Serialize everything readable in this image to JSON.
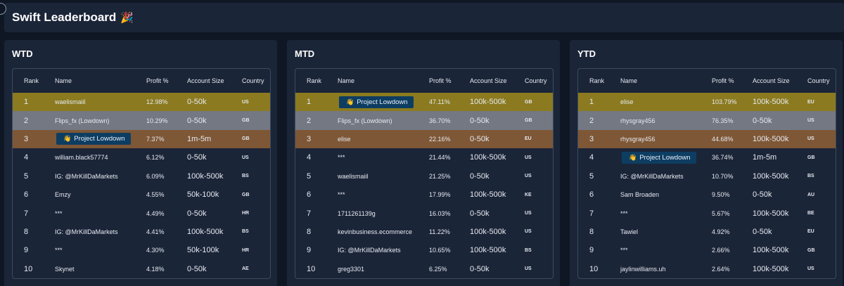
{
  "header": {
    "title": "Swift Leaderboard",
    "icon": "party-popper-icon"
  },
  "columns": {
    "rank": "Rank",
    "name": "Name",
    "profit": "Profit %",
    "size": "Account Size",
    "country": "Country"
  },
  "colors": {
    "gold": "#8b7a1f",
    "silver": "#737883",
    "bronze": "#7e5736",
    "pill": "#0e3d62",
    "panel": "#1b2538",
    "background": "#0f1724"
  },
  "panels": [
    {
      "title": "WTD",
      "rows": [
        {
          "rank": "1",
          "name": "waelismaiil",
          "profit": "12.98%",
          "size": "0-50k",
          "country": "US"
        },
        {
          "rank": "2",
          "name": "Flips_fx (Lowdown)",
          "profit": "10.29%",
          "size": "0-50k",
          "country": "GB"
        },
        {
          "rank": "3",
          "name": "Project Lowdown",
          "profit": "7.37%",
          "size": "1m-5m",
          "country": "GB",
          "pill": true
        },
        {
          "rank": "4",
          "name": "william.black57774",
          "profit": "6.12%",
          "size": "0-50k",
          "country": "US"
        },
        {
          "rank": "5",
          "name": "IG: @MrKillDaMarkets",
          "profit": "6.09%",
          "size": "100k-500k",
          "country": "BS"
        },
        {
          "rank": "6",
          "name": "Emzy",
          "profit": "4.55%",
          "size": "50k-100k",
          "country": "GB"
        },
        {
          "rank": "7",
          "name": "***",
          "profit": "4.49%",
          "size": "0-50k",
          "country": "HR"
        },
        {
          "rank": "8",
          "name": "IG: @MrKillDaMarkets",
          "profit": "4.41%",
          "size": "100k-500k",
          "country": "BS"
        },
        {
          "rank": "9",
          "name": "***",
          "profit": "4.30%",
          "size": "50k-100k",
          "country": "HR"
        },
        {
          "rank": "10",
          "name": "Skynet",
          "profit": "4.18%",
          "size": "0-50k",
          "country": "AE"
        }
      ]
    },
    {
      "title": "MTD",
      "rows": [
        {
          "rank": "1",
          "name": "Project Lowdown",
          "profit": "47.11%",
          "size": "100k-500k",
          "country": "GB",
          "pill": true
        },
        {
          "rank": "2",
          "name": "Flips_fx (Lowdown)",
          "profit": "36.70%",
          "size": "0-50k",
          "country": "GB"
        },
        {
          "rank": "3",
          "name": "elise",
          "profit": "22.16%",
          "size": "0-50k",
          "country": "EU"
        },
        {
          "rank": "4",
          "name": "***",
          "profit": "21.44%",
          "size": "100k-500k",
          "country": "US"
        },
        {
          "rank": "5",
          "name": "waelismaiil",
          "profit": "21.25%",
          "size": "0-50k",
          "country": "US"
        },
        {
          "rank": "6",
          "name": "***",
          "profit": "17.99%",
          "size": "100k-500k",
          "country": "KE"
        },
        {
          "rank": "7",
          "name": "1711261139g",
          "profit": "16.03%",
          "size": "0-50k",
          "country": "US"
        },
        {
          "rank": "8",
          "name": "kevinbusiness.ecommerce",
          "profit": "11.22%",
          "size": "100k-500k",
          "country": "US"
        },
        {
          "rank": "9",
          "name": "IG: @MrKillDaMarkets",
          "profit": "10.65%",
          "size": "100k-500k",
          "country": "BS"
        },
        {
          "rank": "10",
          "name": "greg3301",
          "profit": "6.25%",
          "size": "0-50k",
          "country": "US"
        }
      ]
    },
    {
      "title": "YTD",
      "rows": [
        {
          "rank": "1",
          "name": "elise",
          "profit": "103.79%",
          "size": "100k-500k",
          "country": "EU"
        },
        {
          "rank": "2",
          "name": "rhysgray456",
          "profit": "76.35%",
          "size": "0-50k",
          "country": "US"
        },
        {
          "rank": "3",
          "name": "rhysgray456",
          "profit": "44.68%",
          "size": "100k-500k",
          "country": "US"
        },
        {
          "rank": "4",
          "name": "Project Lowdown",
          "profit": "36.74%",
          "size": "1m-5m",
          "country": "GB",
          "pill": true
        },
        {
          "rank": "5",
          "name": "IG: @MrKillDaMarkets",
          "profit": "10.70%",
          "size": "100k-500k",
          "country": "BS"
        },
        {
          "rank": "6",
          "name": "Sam Broaden",
          "profit": "9.50%",
          "size": "0-50k",
          "country": "AU"
        },
        {
          "rank": "7",
          "name": "***",
          "profit": "5.67%",
          "size": "100k-500k",
          "country": "BE"
        },
        {
          "rank": "8",
          "name": "Tawiel",
          "profit": "4.92%",
          "size": "0-50k",
          "country": "EU"
        },
        {
          "rank": "9",
          "name": "***",
          "profit": "2.66%",
          "size": "100k-500k",
          "country": "GB"
        },
        {
          "rank": "10",
          "name": "jaylinwilliams.uh",
          "profit": "2.64%",
          "size": "100k-500k",
          "country": "US"
        }
      ]
    }
  ]
}
